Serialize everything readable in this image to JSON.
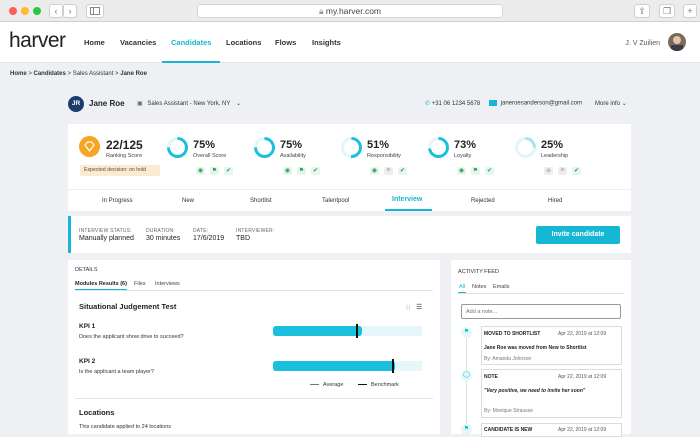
{
  "browser": {
    "url": "my.harver.com",
    "back": "‹",
    "forward": "›",
    "plus": "+"
  },
  "nav": {
    "logo": "harver",
    "items": [
      "Home",
      "Vacancies",
      "Candidates",
      "Locations",
      "Flows",
      "Insights"
    ],
    "active": "Candidates",
    "user": "J. V Zuilien"
  },
  "breadcrumb": {
    "home": "Home",
    "candidates": "Candidates",
    "vacancy": "Sales Assistant",
    "current": "Jane Roe"
  },
  "candidate": {
    "initials": "JR",
    "name": "Jane Roe",
    "vacancy": "Sales Assistant - New York, NY",
    "phone": "+31 06 1234 5678",
    "email": "janeroesanderson@gmail.com",
    "more": "More info"
  },
  "ranking": {
    "score": "22/125",
    "label": "Ranking Score",
    "decision": "Expected decision: on hold"
  },
  "scores": [
    {
      "value": "75%",
      "label": "Overall Score",
      "level": 75
    },
    {
      "value": "75%",
      "label": "Availability",
      "level": 75
    },
    {
      "value": "51%",
      "label": "Responsibility",
      "level": 51
    },
    {
      "value": "73%",
      "label": "Loyalty",
      "level": 73
    },
    {
      "value": "25%",
      "label": "Leadership",
      "level": 25
    }
  ],
  "tabs": [
    "In Progress",
    "New",
    "Shortlist",
    "Talentpool",
    "Interview",
    "Rejected",
    "Hired"
  ],
  "active_tab": "Interview",
  "interview": {
    "status_label": "INTERVIEW STATUS:",
    "status": "Manually planned",
    "duration_label": "DURATION:",
    "duration": "30 minutes",
    "date_label": "DATE:",
    "date": "17/6/2019",
    "interviewer_label": "INTERVIEWER:",
    "interviewer": "TBD",
    "invite": "Invite candidate"
  },
  "details": {
    "heading": "DETAILS",
    "tabs": [
      "Modules Results (6)",
      "Files",
      "Interviews"
    ],
    "section_title": "Situational Judgement Test",
    "kpis": [
      {
        "title": "KPI 1",
        "question": "Does the applicant show drive to succeed?",
        "value": 0.6,
        "benchmark": 0.56
      },
      {
        "title": "KPI 2",
        "question": "Is the applicant a team player?",
        "value": 0.82,
        "benchmark": 0.8
      }
    ],
    "legend_average": "Average",
    "legend_benchmark": "Benchmark",
    "locations_title": "Locations",
    "locations_text": "This candidate applied to 24 locations"
  },
  "feed": {
    "heading": "ACTIVITY FEED",
    "tabs": [
      "All",
      "Notes",
      "Emails"
    ],
    "placeholder": "Add a note...",
    "items": [
      {
        "title": "MOVED TO SHORTLIST",
        "date": "Apr 22, 2019 at 12:09",
        "body": "Jane Roe was moved from New to Shortlist",
        "by": "By: Amanda Johnson"
      },
      {
        "title": "NOTE",
        "date": "Apr 22, 2019 at 12:09",
        "body": "\"Very positive, we need to invite her soon\"",
        "by": "By: Monique Strausse"
      },
      {
        "title": "CANDIDATE IS NEW",
        "date": "Apr 22, 2019 at 12:09"
      }
    ]
  }
}
